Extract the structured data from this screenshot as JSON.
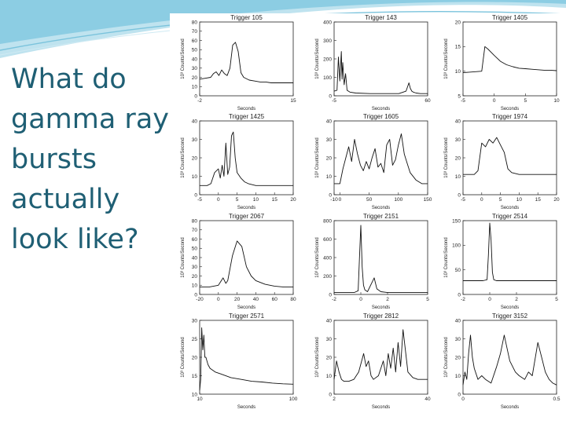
{
  "slide": {
    "title": "What do gamma ray bursts actually look like?",
    "accent_color": "#1f5f74",
    "swoosh_color": "#7ac3dc"
  },
  "chart_data": [
    {
      "type": "line",
      "title": "Trigger 105",
      "xlabel": "Seconds",
      "ylabel": "10³ Counts/Second",
      "xlim": [
        -2,
        15
      ],
      "ylim": [
        0,
        80
      ],
      "xticks": [
        -2,
        15
      ],
      "yticks": [
        0,
        10,
        20,
        30,
        40,
        50,
        60,
        70,
        80
      ],
      "x": [
        -2,
        -1,
        0,
        0.5,
        1,
        1.5,
        2,
        2.5,
        3,
        3.5,
        4,
        4.5,
        5,
        5.5,
        6,
        7,
        8,
        9,
        10,
        11,
        12,
        13,
        14,
        15
      ],
      "y": [
        18,
        19,
        20,
        24,
        26,
        22,
        28,
        24,
        22,
        30,
        55,
        58,
        48,
        25,
        20,
        17,
        16,
        15,
        15,
        14,
        14,
        14,
        14,
        14
      ]
    },
    {
      "type": "line",
      "title": "Trigger 143",
      "xlabel": "Seconds",
      "ylabel": "10³ Counts/Second",
      "xlim": [
        -5,
        60
      ],
      "ylim": [
        0,
        400
      ],
      "xticks": [
        -5,
        60
      ],
      "yticks": [
        0,
        100,
        200,
        300,
        400
      ],
      "x": [
        -5,
        -3,
        -2,
        -1,
        0,
        0.5,
        1,
        2,
        3,
        4,
        6,
        10,
        20,
        30,
        40,
        45,
        47,
        48,
        49,
        50,
        52,
        55,
        60
      ],
      "y": [
        25,
        30,
        210,
        80,
        240,
        90,
        180,
        60,
        120,
        30,
        20,
        15,
        12,
        12,
        12,
        25,
        70,
        40,
        25,
        20,
        15,
        12,
        12
      ]
    },
    {
      "type": "line",
      "title": "Trigger 1405",
      "xlabel": "Seconds",
      "ylabel": "10³ Counts/Second",
      "xlim": [
        -5,
        10
      ],
      "ylim": [
        5,
        20
      ],
      "xticks": [
        -5,
        0,
        5,
        10
      ],
      "yticks": [
        5,
        10,
        15,
        20
      ],
      "x": [
        -5,
        -4,
        -3,
        -2,
        -1.5,
        -1,
        0,
        1,
        2,
        3,
        4,
        5,
        6,
        7,
        8,
        9,
        10
      ],
      "y": [
        9.7,
        9.8,
        9.9,
        10,
        15,
        14.5,
        13.2,
        12,
        11.3,
        10.9,
        10.6,
        10.5,
        10.4,
        10.3,
        10.2,
        10.2,
        10.1
      ]
    },
    {
      "type": "line",
      "title": "Trigger 1425",
      "xlabel": "Seconds",
      "ylabel": "10³ Counts/Second",
      "xlim": [
        -5,
        20
      ],
      "ylim": [
        0,
        40
      ],
      "xticks": [
        -5,
        0,
        5,
        10,
        15,
        20
      ],
      "yticks": [
        0,
        10,
        20,
        30,
        40
      ],
      "x": [
        -5,
        -3,
        -2,
        -1,
        0,
        0.5,
        1,
        1.5,
        2,
        2.5,
        3,
        3.5,
        4,
        4.5,
        5,
        6,
        7,
        8,
        10,
        12,
        15,
        18,
        20
      ],
      "y": [
        5,
        5,
        6,
        12,
        14,
        9,
        16,
        10,
        28,
        11,
        15,
        32,
        34,
        20,
        12,
        9,
        7,
        6,
        5,
        5,
        5,
        5,
        5
      ]
    },
    {
      "type": "line",
      "title": "Trigger 1605",
      "xlabel": "Seconds",
      "ylabel": "10³ Counts/Second",
      "xlim": [
        -10,
        150
      ],
      "ylim": [
        0,
        40
      ],
      "xticks": [
        -10,
        0,
        50,
        100,
        150
      ],
      "yticks": [
        0,
        10,
        20,
        30,
        40
      ],
      "x": [
        -10,
        0,
        5,
        10,
        15,
        20,
        25,
        30,
        35,
        40,
        45,
        50,
        55,
        60,
        65,
        70,
        75,
        80,
        85,
        90,
        95,
        100,
        105,
        110,
        115,
        120,
        130,
        140,
        150
      ],
      "y": [
        6,
        6,
        14,
        20,
        26,
        18,
        30,
        22,
        16,
        13,
        18,
        14,
        20,
        25,
        15,
        17,
        12,
        27,
        30,
        16,
        19,
        27,
        33,
        22,
        17,
        12,
        8,
        6,
        6
      ]
    },
    {
      "type": "line",
      "title": "Trigger 1974",
      "xlabel": "Seconds",
      "ylabel": "10³ Counts/Second",
      "xlim": [
        -5,
        20
      ],
      "ylim": [
        0,
        40
      ],
      "xticks": [
        -5,
        0,
        5,
        10,
        15,
        20
      ],
      "yticks": [
        0,
        10,
        20,
        30,
        40
      ],
      "x": [
        -5,
        -2,
        -1,
        0,
        1,
        2,
        3,
        4,
        5,
        6,
        7,
        8,
        10,
        12,
        15,
        20
      ],
      "y": [
        11,
        11,
        13,
        28,
        26,
        30,
        28,
        31,
        27,
        23,
        14,
        12,
        11,
        11,
        11,
        11
      ]
    },
    {
      "type": "line",
      "title": "Trigger 2067",
      "xlabel": "Seconds",
      "ylabel": "10³ Counts/Second",
      "xlim": [
        -20,
        80
      ],
      "ylim": [
        0,
        80
      ],
      "xticks": [
        -20,
        0,
        20,
        40,
        60,
        80
      ],
      "yticks": [
        0,
        10,
        20,
        30,
        40,
        50,
        60,
        70,
        80
      ],
      "x": [
        -20,
        -10,
        0,
        5,
        8,
        10,
        15,
        20,
        25,
        30,
        35,
        40,
        50,
        60,
        70,
        80
      ],
      "y": [
        8,
        8,
        10,
        18,
        12,
        15,
        42,
        58,
        52,
        30,
        20,
        15,
        11,
        9,
        8,
        8
      ]
    },
    {
      "type": "line",
      "title": "Trigger 2151",
      "xlabel": "Seconds",
      "ylabel": "10³ Counts/Second",
      "xlim": [
        -2,
        5
      ],
      "ylim": [
        0,
        800
      ],
      "xticks": [
        -2,
        0,
        2,
        5
      ],
      "yticks": [
        0,
        200,
        400,
        600,
        800
      ],
      "x": [
        -2,
        -1,
        -0.5,
        -0.2,
        -0.1,
        0,
        0.1,
        0.2,
        0.3,
        0.5,
        0.8,
        1,
        1.2,
        1.5,
        2,
        3,
        5
      ],
      "y": [
        20,
        20,
        20,
        40,
        400,
        750,
        300,
        100,
        50,
        30,
        120,
        180,
        60,
        30,
        20,
        20,
        20
      ]
    },
    {
      "type": "line",
      "title": "Trigger 2514",
      "xlabel": "Seconds",
      "ylabel": "10³ Counts/Second",
      "xlim": [
        -2,
        5
      ],
      "ylim": [
        0,
        150
      ],
      "xticks": [
        -2,
        0,
        2,
        5
      ],
      "yticks": [
        0,
        50,
        100,
        150
      ],
      "x": [
        -2,
        -1,
        -0.5,
        -0.2,
        -0.1,
        0,
        0.1,
        0.2,
        0.3,
        0.5,
        1,
        2,
        3,
        4,
        5
      ],
      "y": [
        28,
        28,
        28,
        30,
        80,
        145,
        110,
        45,
        30,
        28,
        28,
        28,
        28,
        28,
        28
      ]
    },
    {
      "type": "line",
      "title": "Trigger 2571",
      "xlabel": "Seconds",
      "ylabel": "10³ Counts/Second",
      "xlim": [
        10,
        100
      ],
      "ylim": [
        10,
        30
      ],
      "xticks": [
        10,
        100
      ],
      "yticks": [
        10,
        15,
        20,
        25,
        30
      ],
      "x": [
        10,
        11,
        12,
        13,
        14,
        15,
        16,
        18,
        20,
        25,
        30,
        40,
        50,
        60,
        70,
        80,
        90,
        100
      ],
      "y": [
        11,
        14,
        28,
        22,
        26,
        20,
        20,
        18,
        17,
        16,
        15.5,
        14.5,
        14,
        13.5,
        13.3,
        13,
        12.8,
        12.7
      ]
    },
    {
      "type": "line",
      "title": "Trigger 2812",
      "xlabel": "Seconds",
      "ylabel": "10³ Counts/Second",
      "xlim": [
        2,
        40
      ],
      "ylim": [
        0,
        40
      ],
      "xticks": [
        2,
        40
      ],
      "yticks": [
        0,
        10,
        20,
        30,
        40
      ],
      "x": [
        2,
        3,
        4,
        5,
        6,
        8,
        10,
        12,
        14,
        15,
        16,
        17,
        18,
        20,
        22,
        23,
        24,
        25,
        26,
        27,
        28,
        29,
        30,
        32,
        34,
        36,
        38,
        40
      ],
      "y": [
        8,
        18,
        12,
        8,
        7,
        7,
        8,
        12,
        22,
        15,
        18,
        10,
        8,
        10,
        18,
        10,
        22,
        14,
        25,
        12,
        28,
        15,
        35,
        12,
        9,
        8,
        8,
        8
      ]
    },
    {
      "type": "line",
      "title": "Trigger 3152",
      "xlabel": "Seconds",
      "ylabel": "10³ Counts/Second",
      "xlim": [
        0,
        0.5
      ],
      "ylim": [
        0,
        40
      ],
      "xticks": [
        0,
        0.5
      ],
      "yticks": [
        0,
        10,
        20,
        30,
        40
      ],
      "x": [
        0,
        0.01,
        0.02,
        0.03,
        0.04,
        0.05,
        0.06,
        0.08,
        0.1,
        0.12,
        0.15,
        0.18,
        0.2,
        0.22,
        0.25,
        0.28,
        0.3,
        0.33,
        0.35,
        0.37,
        0.4,
        0.42,
        0.44,
        0.46,
        0.48,
        0.5
      ],
      "y": [
        5,
        12,
        8,
        22,
        32,
        20,
        14,
        8,
        10,
        8,
        6,
        15,
        22,
        32,
        18,
        12,
        10,
        8,
        12,
        10,
        28,
        20,
        12,
        8,
        6,
        5
      ]
    }
  ]
}
